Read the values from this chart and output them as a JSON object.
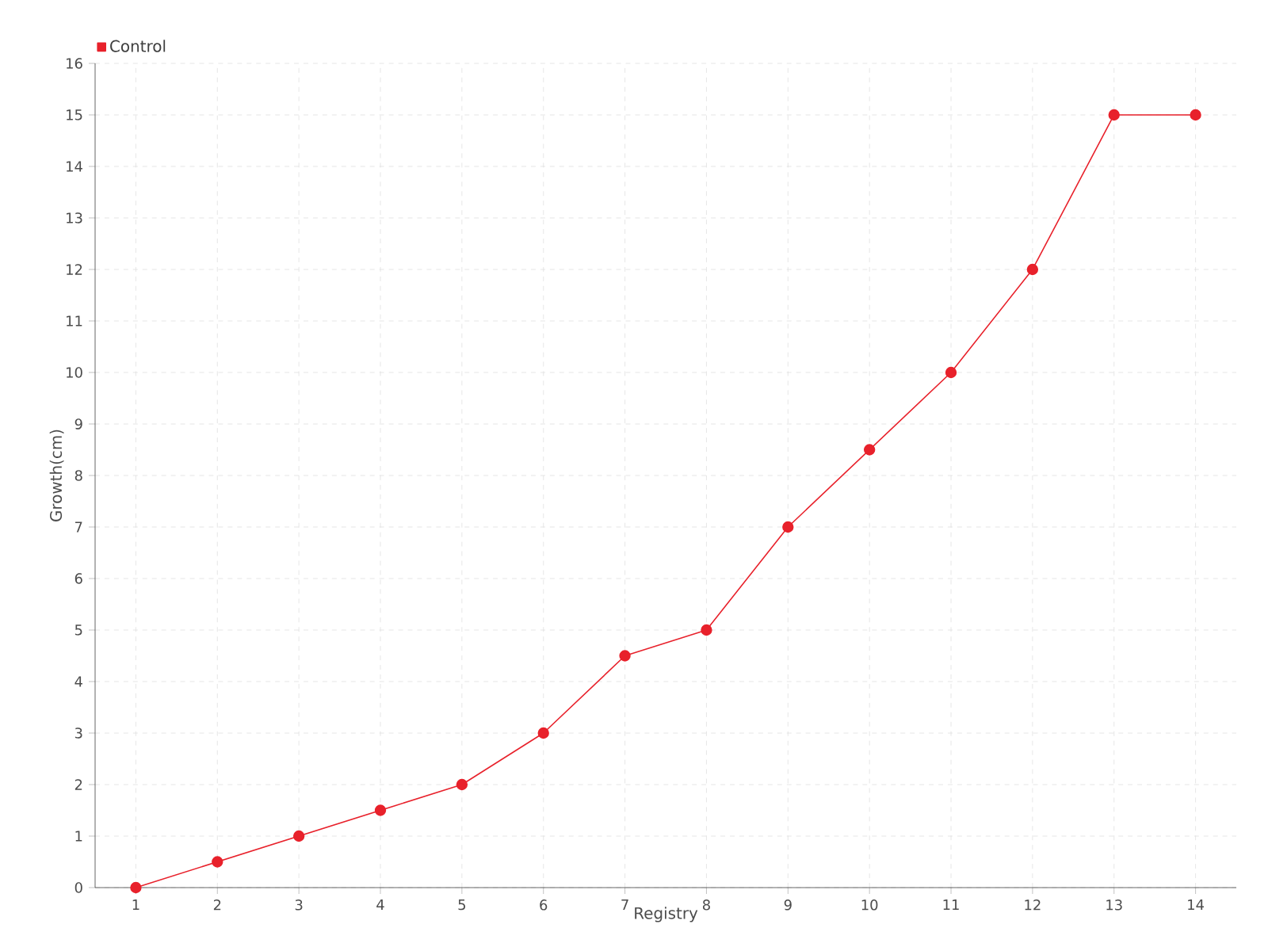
{
  "chart_data": {
    "type": "line",
    "xlabel": "Registry",
    "ylabel": "Growth(cm)",
    "categories": [
      "1",
      "2",
      "3",
      "4",
      "5",
      "6",
      "7",
      "8",
      "9",
      "10",
      "11",
      "12",
      "13",
      "14"
    ],
    "series": [
      {
        "name": "Control",
        "color": "#e8212b",
        "values": [
          0,
          0.5,
          1,
          1.5,
          2,
          3,
          4.5,
          5,
          7,
          8.5,
          10,
          12,
          15,
          15
        ]
      }
    ],
    "ylim": [
      0,
      16
    ],
    "yticks": [
      0,
      1,
      2,
      3,
      4,
      5,
      6,
      7,
      8,
      9,
      10,
      11,
      12,
      13,
      14,
      15,
      16
    ],
    "grid": true,
    "legend": "top left",
    "marker": "circle",
    "line_style": "solid"
  }
}
